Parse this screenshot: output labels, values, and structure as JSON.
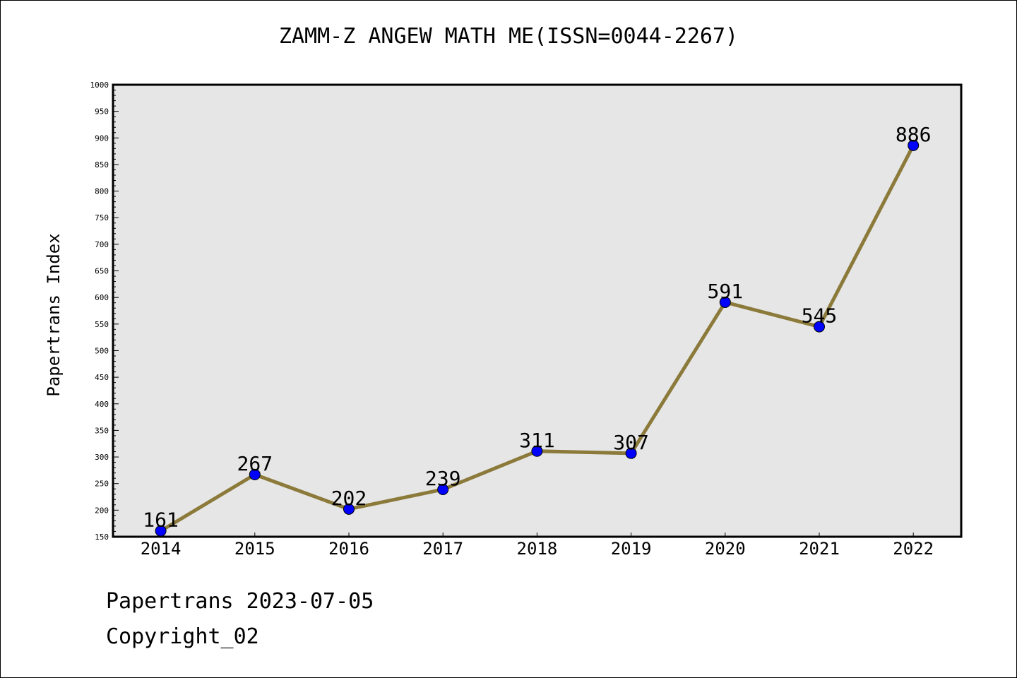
{
  "chart_data": {
    "type": "line",
    "title": "ZAMM-Z ANGEW MATH ME(ISSN=0044-2267)",
    "xlabel": "",
    "ylabel": "Papertrans Index",
    "categories": [
      "2014",
      "2015",
      "2016",
      "2017",
      "2018",
      "2019",
      "2020",
      "2021",
      "2022"
    ],
    "series": [
      {
        "values": [
          161,
          267,
          202,
          239,
          311,
          307,
          591,
          545,
          886
        ]
      }
    ],
    "data_labels": [
      "161",
      "267",
      "202",
      "239",
      "311",
      "307",
      "591",
      "545",
      "886"
    ],
    "ylim": [
      150,
      1000
    ],
    "y_major_step": 50,
    "y_minor_step": 10,
    "grid": false,
    "legend": "none",
    "colors": {
      "line": "#8b7a3a",
      "marker": "#0000ff",
      "plot_background": "#e6e6e6"
    }
  },
  "footer": {
    "date_line": "Papertrans 2023-07-05",
    "copyright": "Copyright_02"
  }
}
